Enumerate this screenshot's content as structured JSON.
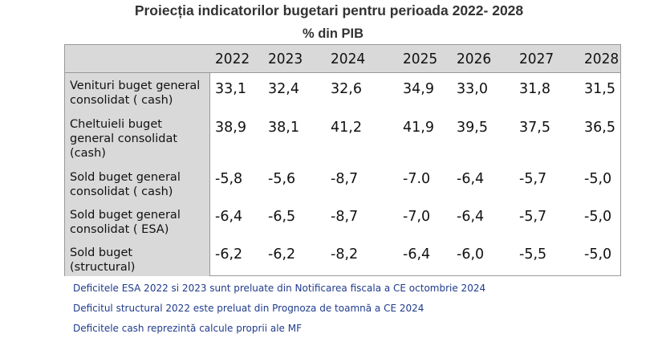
{
  "title": "Proiecția indicatorilor bugetari pentru perioada 2022- 2028",
  "subtitle": "% din PIB",
  "years": [
    "2022",
    "2023",
    "2024",
    "2025",
    "2026",
    "2027",
    "2028"
  ],
  "rows": [
    {
      "label": "Venituri buget general consolidat ( cash)",
      "values": [
        "33,1",
        "32,4",
        "32,6",
        "34,9",
        "33,0",
        "31,8",
        "31,5"
      ]
    },
    {
      "label": "Cheltuieli  buget general consolidat (cash)",
      "values": [
        "38,9",
        "38,1",
        "41,2",
        "41,9",
        "39,5",
        "37,5",
        "36,5"
      ]
    },
    {
      "label": "Sold buget general consolidat ( cash)",
      "values": [
        "-5,8",
        "-5,6",
        "-8,7",
        "-7.0",
        "-6,4",
        "-5,7",
        "-5,0"
      ]
    },
    {
      "label": "Sold  buget general consolidat ( ESA)",
      "values": [
        "-6,4",
        "-6,5",
        "-8,7",
        "-7,0",
        "-6,4",
        "-5,7",
        "-5,0"
      ]
    },
    {
      "label": "Sold  buget (structural)",
      "values": [
        "-6,2",
        "-6,2",
        "-8,2",
        "-6,4",
        "-6,0",
        "-5,5",
        "-5,0"
      ]
    }
  ],
  "notes": [
    "Deficitele ESA 2022 si 2023 sunt preluate din Notificarea fiscala a CE  octombrie 2024",
    "Deficitul structural 2022 este preluat din  Prognoza de toamnă a CE 2024",
    "Deficitele cash reprezintă calcule proprii ale MF"
  ]
}
